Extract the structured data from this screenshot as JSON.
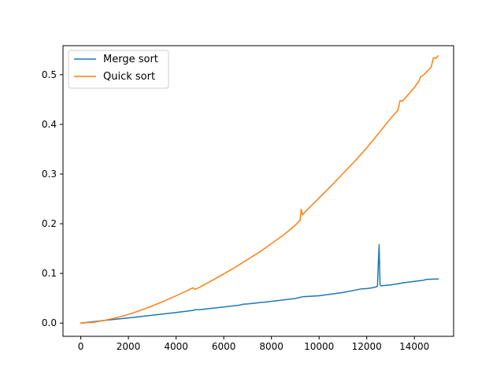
{
  "chart_data": {
    "type": "line",
    "title": "",
    "xlabel": "",
    "ylabel": "",
    "xlim": [
      -745,
      15645
    ],
    "ylim": [
      -0.0266,
      0.5584
    ],
    "xticks": [
      0,
      2000,
      4000,
      6000,
      8000,
      10000,
      12000,
      14000
    ],
    "xtick_labels": [
      "0",
      "2000",
      "4000",
      "6000",
      "8000",
      "10000",
      "12000",
      "14000"
    ],
    "yticks": [
      0.0,
      0.1,
      0.2,
      0.3,
      0.4,
      0.5
    ],
    "ytick_labels": [
      "0.0",
      "0.1",
      "0.2",
      "0.3",
      "0.4",
      "0.5"
    ],
    "grid": false,
    "legend": {
      "position": "upper-left"
    },
    "series": [
      {
        "name": "Merge sort",
        "color": "#1f77b4",
        "points": [
          [
            0,
            0.0
          ],
          [
            1000,
            0.0055
          ],
          [
            2000,
            0.0105
          ],
          [
            3000,
            0.0158
          ],
          [
            4000,
            0.0212
          ],
          [
            4700,
            0.0255
          ],
          [
            4800,
            0.027
          ],
          [
            5000,
            0.0272
          ],
          [
            6000,
            0.0325
          ],
          [
            6700,
            0.0365
          ],
          [
            6800,
            0.038
          ],
          [
            7000,
            0.0385
          ],
          [
            8000,
            0.0438
          ],
          [
            9000,
            0.0495
          ],
          [
            9300,
            0.053
          ],
          [
            10000,
            0.055
          ],
          [
            11000,
            0.0615
          ],
          [
            11800,
            0.069
          ],
          [
            12000,
            0.0695
          ],
          [
            12300,
            0.0715
          ],
          [
            12450,
            0.074
          ],
          [
            12520,
            0.158
          ],
          [
            12560,
            0.077
          ],
          [
            12600,
            0.075
          ],
          [
            13000,
            0.077
          ],
          [
            13300,
            0.079
          ],
          [
            13500,
            0.081
          ],
          [
            14000,
            0.084
          ],
          [
            14400,
            0.0865
          ],
          [
            14500,
            0.088
          ],
          [
            15000,
            0.089
          ]
        ]
      },
      {
        "name": "Quick sort",
        "color": "#ff7f0e",
        "points": [
          [
            0,
            0.0
          ],
          [
            500,
            0.0015
          ],
          [
            1000,
            0.0055
          ],
          [
            1500,
            0.011
          ],
          [
            2000,
            0.0175
          ],
          [
            2500,
            0.0255
          ],
          [
            3000,
            0.0345
          ],
          [
            3500,
            0.0445
          ],
          [
            4000,
            0.055
          ],
          [
            4500,
            0.066
          ],
          [
            4700,
            0.071
          ],
          [
            4800,
            0.068
          ],
          [
            5000,
            0.0725
          ],
          [
            5500,
            0.0855
          ],
          [
            6000,
            0.099
          ],
          [
            6500,
            0.113
          ],
          [
            7000,
            0.128
          ],
          [
            7500,
            0.143
          ],
          [
            8000,
            0.16
          ],
          [
            8500,
            0.177
          ],
          [
            9000,
            0.197
          ],
          [
            9200,
            0.207
          ],
          [
            9250,
            0.229
          ],
          [
            9300,
            0.218
          ],
          [
            9500,
            0.228
          ],
          [
            10000,
            0.252
          ],
          [
            10500,
            0.276
          ],
          [
            11000,
            0.301
          ],
          [
            11500,
            0.326
          ],
          [
            12000,
            0.353
          ],
          [
            12500,
            0.382
          ],
          [
            13000,
            0.412
          ],
          [
            13300,
            0.428
          ],
          [
            13400,
            0.448
          ],
          [
            13500,
            0.447
          ],
          [
            14000,
            0.474
          ],
          [
            14200,
            0.488
          ],
          [
            14250,
            0.495
          ],
          [
            14400,
            0.5
          ],
          [
            14700,
            0.515
          ],
          [
            14800,
            0.534
          ],
          [
            14900,
            0.533
          ],
          [
            15000,
            0.538
          ]
        ]
      }
    ]
  }
}
